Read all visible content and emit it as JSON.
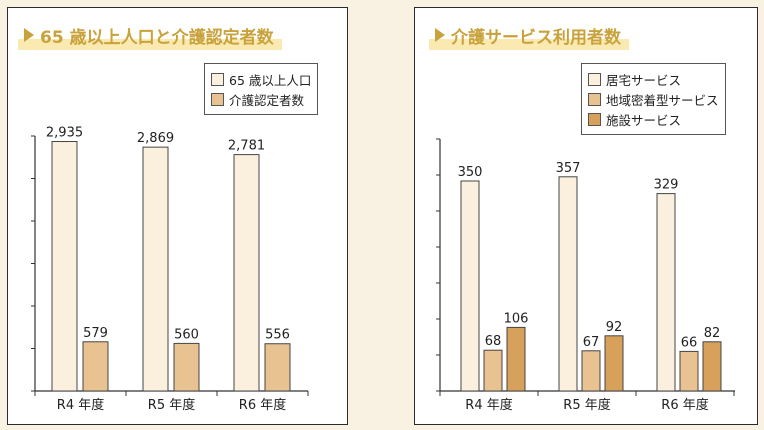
{
  "colors": {
    "background": "#f9f1e1",
    "title": "#c9a23c",
    "title_highlight": "#faeab1",
    "series": [
      "#fbf0dd",
      "#e8c391",
      "#d7a15c"
    ]
  },
  "chart_data": [
    {
      "type": "bar",
      "title": "65 歳以上人口と介護認定者数",
      "categories": [
        "R4 年度",
        "R5 年度",
        "R6 年度"
      ],
      "series": [
        {
          "name": "65 歳以上人口",
          "values": [
            2935,
            2869,
            2781
          ],
          "labels": [
            "2,935",
            "2,869",
            "2,781"
          ]
        },
        {
          "name": "介護認定者数",
          "values": [
            579,
            560,
            556
          ],
          "labels": [
            "579",
            "560",
            "556"
          ]
        }
      ],
      "ylim": [
        0,
        3000
      ],
      "yticks": 7,
      "legend": "top-right",
      "grid": false
    },
    {
      "type": "bar",
      "title": "介護サービス利用者数",
      "categories": [
        "R4 年度",
        "R5 年度",
        "R6 年度"
      ],
      "series": [
        {
          "name": "居宅サービス",
          "values": [
            350,
            357,
            329
          ],
          "labels": [
            "350",
            "357",
            "329"
          ]
        },
        {
          "name": "地域密着型サービス",
          "values": [
            68,
            67,
            66
          ],
          "labels": [
            "68",
            "67",
            "66"
          ]
        },
        {
          "name": "施設サービス",
          "values": [
            106,
            92,
            82
          ],
          "labels": [
            "106",
            "92",
            "82"
          ]
        }
      ],
      "ylim": [
        0,
        420
      ],
      "yticks": 8,
      "legend": "top-right",
      "grid": false
    }
  ]
}
